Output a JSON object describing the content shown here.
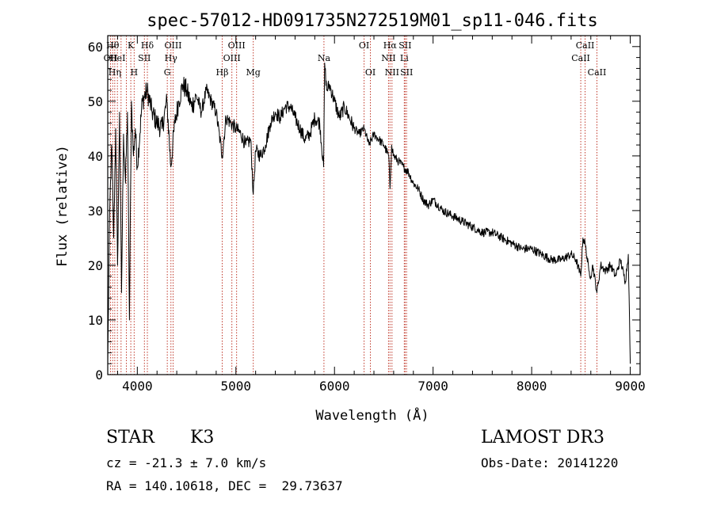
{
  "chart_data": {
    "type": "line",
    "title": "spec-57012-HD091735N272519M01_sp11-046.fits",
    "xlabel": "Wavelength (Å)",
    "ylabel": "Flux (relative)",
    "xlim": [
      3700,
      9100
    ],
    "ylim": [
      0,
      62
    ],
    "xticks": [
      4000,
      5000,
      6000,
      7000,
      8000,
      9000
    ],
    "yticks": [
      0,
      10,
      20,
      30,
      40,
      50,
      60
    ],
    "series": [
      {
        "name": "flux",
        "x": [
          3700,
          3720,
          3740,
          3760,
          3780,
          3800,
          3820,
          3840,
          3860,
          3880,
          3900,
          3920,
          3940,
          3960,
          3980,
          4000,
          4050,
          4100,
          4150,
          4200,
          4250,
          4300,
          4340,
          4380,
          4420,
          4460,
          4500,
          4550,
          4600,
          4650,
          4700,
          4750,
          4800,
          4861,
          4900,
          4950,
          5000,
          5050,
          5100,
          5150,
          5176,
          5200,
          5250,
          5300,
          5350,
          5400,
          5450,
          5500,
          5550,
          5600,
          5650,
          5700,
          5750,
          5800,
          5850,
          5890,
          5900,
          5920,
          5950,
          6000,
          6050,
          6100,
          6150,
          6200,
          6250,
          6300,
          6350,
          6400,
          6450,
          6500,
          6550,
          6563,
          6580,
          6600,
          6650,
          6700,
          6750,
          6800,
          6850,
          6900,
          6950,
          7000,
          7100,
          7200,
          7300,
          7400,
          7500,
          7600,
          7700,
          7800,
          7900,
          8000,
          8100,
          8200,
          8300,
          8400,
          8450,
          8498,
          8520,
          8542,
          8580,
          8600,
          8620,
          8662,
          8700,
          8750,
          8800,
          8850,
          8900,
          8950,
          8980,
          9000
        ],
        "values": [
          2,
          30,
          42,
          25,
          45,
          20,
          48,
          15,
          44,
          35,
          48,
          10,
          50,
          40,
          45,
          38,
          50,
          52,
          48,
          46,
          45,
          50,
          38,
          46,
          50,
          53,
          52,
          49,
          51,
          48,
          52,
          50,
          48,
          40,
          47,
          46,
          45,
          44,
          42,
          43,
          33,
          41,
          40,
          42,
          46,
          48,
          47,
          49,
          49,
          47,
          45,
          43,
          44,
          47,
          46,
          38,
          57,
          52,
          53,
          50,
          47,
          49,
          47,
          45,
          44,
          45,
          42,
          44,
          43,
          42,
          40,
          34,
          42,
          40,
          39,
          38,
          37,
          35,
          34,
          32,
          31,
          32,
          30,
          29,
          28,
          27,
          26,
          26,
          25,
          24,
          23,
          23,
          22,
          21,
          21,
          22,
          21,
          18,
          25,
          24,
          19,
          18,
          20,
          15,
          20,
          19,
          20,
          18,
          21,
          17,
          22,
          2
        ]
      }
    ],
    "lines": [
      {
        "x": 3728,
        "label": "OII",
        "row": 1
      },
      {
        "x": 3750,
        "label": "Hθ",
        "row": 0
      },
      {
        "x": 3771,
        "label": "Hη",
        "row": 2
      },
      {
        "x": 3798,
        "label": "HeI",
        "row": 1
      },
      {
        "x": 3835,
        "label": "",
        "row": 0
      },
      {
        "x": 3889,
        "label": "",
        "row": 0
      },
      {
        "x": 3934,
        "label": "K",
        "row": 0
      },
      {
        "x": 3968,
        "label": "H",
        "row": 2
      },
      {
        "x": 4072,
        "label": "SII",
        "row": 1
      },
      {
        "x": 4102,
        "label": "Hδ",
        "row": 0
      },
      {
        "x": 4304,
        "label": "G",
        "row": 2
      },
      {
        "x": 4341,
        "label": "Hγ",
        "row": 1
      },
      {
        "x": 4363,
        "label": "OIII",
        "row": 0
      },
      {
        "x": 4861,
        "label": "Hβ",
        "row": 2
      },
      {
        "x": 4959,
        "label": "OIII",
        "row": 1
      },
      {
        "x": 5007,
        "label": "OIII",
        "row": 0
      },
      {
        "x": 5176,
        "label": "Mg",
        "row": 2
      },
      {
        "x": 5893,
        "label": "Na",
        "row": 1
      },
      {
        "x": 6300,
        "label": "OI",
        "row": 0
      },
      {
        "x": 6364,
        "label": "OI",
        "row": 2
      },
      {
        "x": 6548,
        "label": "NII",
        "row": 1
      },
      {
        "x": 6563,
        "label": "Hα",
        "row": 0
      },
      {
        "x": 6583,
        "label": "NII",
        "row": 2
      },
      {
        "x": 6708,
        "label": "Li",
        "row": 1
      },
      {
        "x": 6716,
        "label": "SII",
        "row": 0
      },
      {
        "x": 6731,
        "label": "SII",
        "row": 2
      },
      {
        "x": 8498,
        "label": "CaII",
        "row": 1
      },
      {
        "x": 8542,
        "label": "CaII",
        "row": 0
      },
      {
        "x": 8662,
        "label": "CaII",
        "row": 2
      }
    ]
  },
  "info": {
    "class": "STAR",
    "subclass": "K3",
    "cz": "cz = -21.3 ± 7.0 km/s",
    "radec": "RA = 140.10618, DEC =  29.73637",
    "survey": "LAMOST DR3",
    "obsdate": "Obs-Date: 20141220"
  }
}
